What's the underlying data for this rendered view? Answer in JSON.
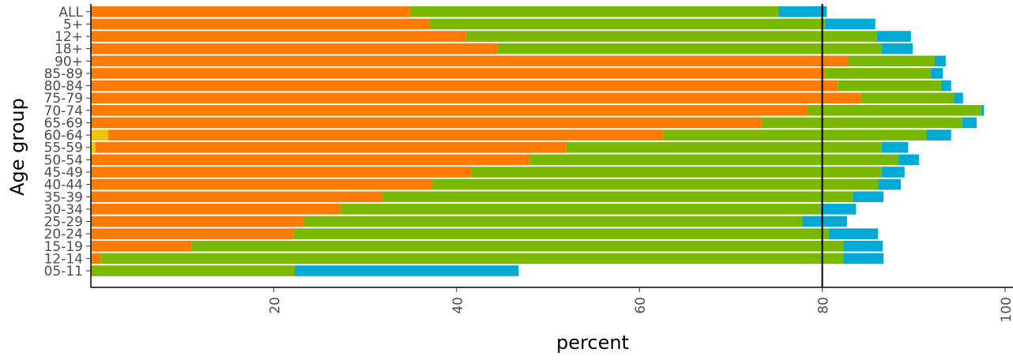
{
  "chart_data": {
    "type": "bar",
    "orientation": "horizontal",
    "stacked": true,
    "xlabel": "percent",
    "ylabel": "Age group",
    "xlim": [
      0,
      100
    ],
    "x_ticks": [
      "20",
      "40",
      "60",
      "80",
      "100"
    ],
    "reference_line": 80,
    "grid": false,
    "legend": "none",
    "categories": [
      "ALL",
      "5+",
      "12+",
      "18+",
      "90+",
      "85-89",
      "80-84",
      "75-79",
      "70-74",
      "65-69",
      "60-64",
      "55-59",
      "50-54",
      "45-49",
      "40-44",
      "35-39",
      "30-34",
      "25-29",
      "20-24",
      "15-19",
      "12-14",
      "05-11"
    ],
    "series": [
      {
        "color": "#f0c400",
        "values": [
          0,
          0,
          0,
          0,
          0,
          0,
          0,
          0,
          0,
          0,
          1.9,
          0.5,
          0,
          0,
          0,
          0,
          0,
          0,
          0,
          0,
          0,
          0
        ]
      },
      {
        "color": "#ff7a00",
        "values": [
          34.9,
          37.0,
          41.0,
          44.5,
          82.8,
          80.3,
          81.7,
          84.2,
          78.4,
          73.3,
          60.7,
          51.5,
          48.0,
          41.5,
          37.3,
          31.9,
          27.3,
          23.3,
          22.2,
          11.0,
          1.1,
          0
        ]
      },
      {
        "color": "#7ab800",
        "values": [
          40.3,
          43.3,
          45.0,
          42.0,
          9.5,
          11.6,
          11.3,
          10.2,
          19.0,
          22.0,
          28.8,
          34.5,
          40.3,
          45.0,
          48.8,
          51.5,
          52.5,
          54.5,
          58.5,
          71.3,
          81.2,
          22.3
        ]
      },
      {
        "color": "#00aad4",
        "values": [
          5.3,
          5.5,
          3.7,
          3.4,
          1.2,
          1.3,
          1.1,
          1.0,
          0.3,
          1.6,
          2.7,
          2.9,
          2.3,
          2.5,
          2.5,
          3.3,
          3.9,
          4.9,
          5.4,
          4.3,
          4.4,
          24.5
        ]
      }
    ]
  }
}
